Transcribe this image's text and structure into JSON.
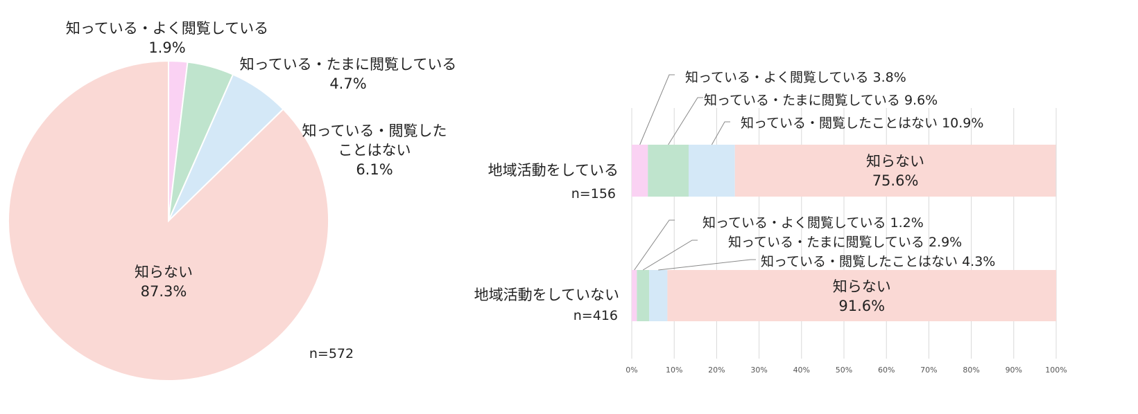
{
  "chart_data": [
    {
      "type": "pie",
      "categories": [
        "知っている・よく閲覧している",
        "知っている・たまに閲覧している",
        "知っている・閲覧したことはない",
        "知らない"
      ],
      "values": [
        1.9,
        4.7,
        6.1,
        87.3
      ],
      "value_labels": [
        "1.9%",
        "4.7%",
        "6.1%",
        "87.3%"
      ],
      "slice_labels": [
        [
          "知っている・よく閲覧している"
        ],
        [
          "知っている・たまに閲覧している"
        ],
        [
          "知っている・閲覧した",
          "ことはない"
        ],
        [
          "知らない"
        ]
      ],
      "colors": [
        "#fad2f3",
        "#bfe4cd",
        "#d4e8f7",
        "#fad9d5"
      ],
      "n_label": "n=572"
    },
    {
      "type": "bar",
      "orientation": "horizontal",
      "stacked": true,
      "categories": [
        "地域活動をしている",
        "地域活動をしていない"
      ],
      "category_n": [
        "n=156",
        "n=416"
      ],
      "series": [
        {
          "name": "知っている・よく閲覧している",
          "values": [
            3.8,
            1.2
          ],
          "color": "#fad2f3"
        },
        {
          "name": "知っている・たまに閲覧している",
          "values": [
            9.6,
            2.9
          ],
          "color": "#bfe4cd"
        },
        {
          "name": "知っている・閲覧したことはない",
          "values": [
            10.9,
            4.3
          ],
          "color": "#d4e8f7"
        },
        {
          "name": "知らない",
          "values": [
            75.6,
            91.6
          ],
          "color": "#fad9d5"
        }
      ],
      "value_labels": [
        [
          "3.8%",
          "9.6%",
          "10.9%",
          "75.6%"
        ],
        [
          "1.2%",
          "2.9%",
          "4.3%",
          "91.6%"
        ]
      ],
      "xlim": [
        0,
        100
      ],
      "x_ticks": [
        "0%",
        "10%",
        "20%",
        "30%",
        "40%",
        "50%",
        "60%",
        "70%",
        "80%",
        "90%",
        "100%"
      ],
      "grid": true
    }
  ]
}
